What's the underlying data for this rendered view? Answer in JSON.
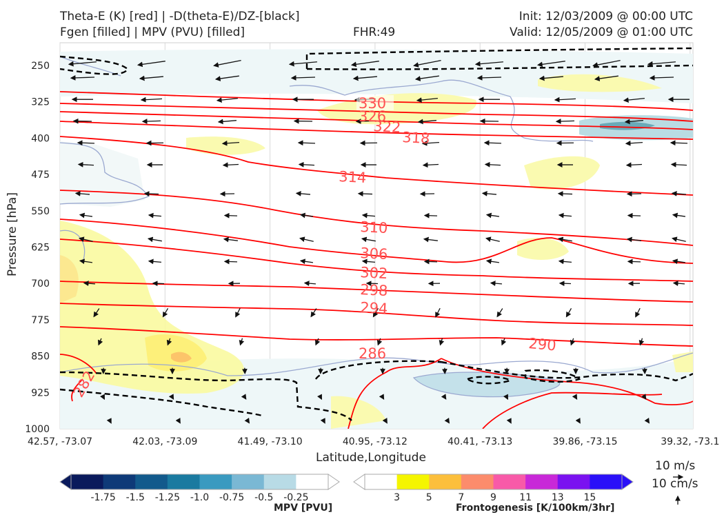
{
  "header": {
    "title_left_1": "Theta-E (K) [red] | -D(theta-E)/DZ-[black]",
    "title_left_2": "Fgen [filled] | MPV (PVU) [filled]",
    "fhr": "FHR:49",
    "init": "Init: 12/03/2009 @ 00:00 UTC",
    "valid": "Valid: 12/05/2009 @ 01:00 UTC"
  },
  "axes": {
    "ylabel": "Pressure [hPa]",
    "xlabel": "Latitude,Longitude"
  },
  "chart_data": {
    "type": "cross-section",
    "y_ticks": [
      250,
      325,
      400,
      475,
      550,
      625,
      700,
      775,
      850,
      925,
      1000
    ],
    "y_range": [
      1000,
      200
    ],
    "x_ticks": [
      "42.57, -73.07",
      "42.03, -73.09",
      "41.49, -73.10",
      "40.95, -73.12",
      "40.41, -73.13",
      "39.86, -73.15",
      "39.32, -73.1"
    ],
    "grid": true,
    "theta_e_contours": [
      {
        "value": 282,
        "label": "282"
      },
      {
        "value": 286,
        "label": "286"
      },
      {
        "value": 290,
        "label": "290"
      },
      {
        "value": 294,
        "label": "294"
      },
      {
        "value": 298,
        "label": "298"
      },
      {
        "value": 302,
        "label": "302"
      },
      {
        "value": 306,
        "label": "306"
      },
      {
        "value": 310,
        "label": "310"
      },
      {
        "value": 314,
        "label": "314"
      },
      {
        "value": 318,
        "label": "318"
      },
      {
        "value": 322,
        "label": "322"
      },
      {
        "value": 326,
        "label": "326"
      },
      {
        "value": 330,
        "label": "330"
      }
    ],
    "vector_key": {
      "label_1": "10 m/s",
      "label_2": "10 cm/s"
    },
    "mpv_colorbar": {
      "title": "MPV [PVU]",
      "ticks": [
        "-1.75",
        "-1.5",
        "-1.25",
        "-1.0",
        "-0.75",
        "-0.5",
        "-0.25"
      ],
      "colors": [
        "#0a1a5c",
        "#0e3a78",
        "#125a8c",
        "#1a7aa0",
        "#3a9ac0",
        "#7ab8d4",
        "#b8dbe6",
        "#ffffff"
      ]
    },
    "fgen_colorbar": {
      "title": "Frontogenesis [K/100km/3hr]",
      "ticks": [
        "3",
        "5",
        "7",
        "9",
        "11",
        "13",
        "15"
      ],
      "colors": [
        "#ffffff",
        "#f5f500",
        "#fcbf3c",
        "#fc8c6c",
        "#f85aa8",
        "#c828d8",
        "#7a12f0",
        "#2a10f8"
      ]
    },
    "colors": {
      "theta_e": "#ff0000",
      "theta_e_label": "#ff5050",
      "stability": "#000000",
      "mpv_outline": "#9aa8d0"
    }
  }
}
